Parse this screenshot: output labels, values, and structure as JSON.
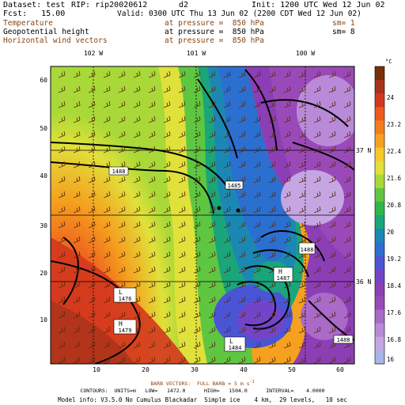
{
  "header": {
    "dataset": "Dataset: test",
    "rip": "RIP: rip20020612",
    "domain": "d2",
    "init": "Init: 1200 UTC Wed 12 Jun 02",
    "fcst": "Fcst:   15.00",
    "valid": "Valid: 0300 UTC Thu 13 Jun 02 (2200 CDT Wed 12 Jun 02)",
    "field1": "Temperature",
    "field1_level": "at pressure =  850 hPa",
    "field1_sm": "sm= 1",
    "field2": "Geopotential height",
    "field2_level": "at pressure =  850 hPa",
    "field2_sm": "sm= 8",
    "field3": "Horizontal wind vectors",
    "field3_level": "at pressure =  850 hPa"
  },
  "map": {
    "lon_labels": [
      "102 W",
      "101 W",
      "100 W"
    ],
    "lat_labels": [
      "37 N",
      "36 N"
    ],
    "x_ticks": [
      "10",
      "20",
      "30",
      "40",
      "50",
      "60"
    ],
    "y_ticks": [
      "10",
      "20",
      "30",
      "40",
      "50",
      "60"
    ],
    "contour_labels": [
      "1488",
      "1485",
      "1488",
      "1487",
      "1476",
      "1479",
      "1484",
      "1488"
    ],
    "highs_lows": [
      "H",
      "L",
      "H",
      "L"
    ],
    "colorbar_unit": "°C",
    "colorbar_labels": [
      "24",
      "23.2",
      "22.4",
      "21.6",
      "20.8",
      "20",
      "19.2",
      "18.4",
      "17.6",
      "16.8",
      "16"
    ],
    "colorbar_colors": [
      "#7a2e08",
      "#a9331a",
      "#d3381e",
      "#ee5a1c",
      "#f27d1c",
      "#f5a01f",
      "#f6c928",
      "#e0e13a",
      "#a8d938",
      "#5fc642",
      "#2fb84a",
      "#1aa57a",
      "#1b88b3",
      "#2b6fd0",
      "#4a55d6",
      "#7245c8",
      "#8c3fb5",
      "#9a4ab8",
      "#a96ac8",
      "#b98ad8",
      "#c5a6e3",
      "#a9b4ea"
    ]
  },
  "footer": {
    "barb_line": "BARB VECTORS:  FULL BARB = 5 m s",
    "barb_exp": "-1",
    "contours_line": "CONTOURS:  UNITS=m   LOW=   1472.0      HIGH=   1504.0      INTERVAL=    4.0000",
    "model_line": "Model info: V3.5.0 No Cumulus Blackadar  Simple ice    4 km,  29 levels,   10 sec"
  }
}
